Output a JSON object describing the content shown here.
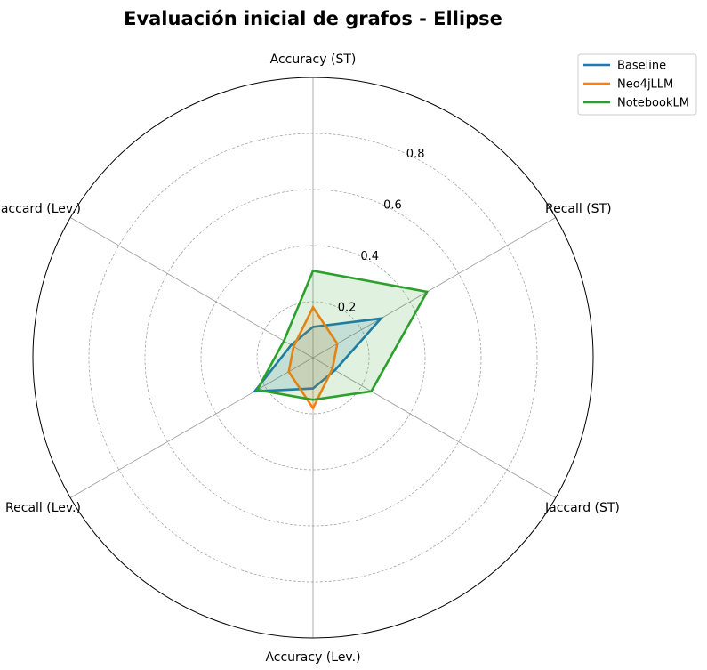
{
  "chart_data": {
    "type": "radar",
    "title": "Evaluación inicial de grafos - Ellipse",
    "axes": [
      "Accuracy (ST)",
      "Recall (ST)",
      "Jaccard (ST)",
      "Accuracy (Lev.)",
      "Recall (Lev.)",
      "Jaccard (Lev.)"
    ],
    "rlim": [
      0,
      1.0
    ],
    "rticks": [
      0.2,
      0.4,
      0.6,
      0.8
    ],
    "rtick_labels": [
      "0.2",
      "0.4",
      "0.6",
      "0.8"
    ],
    "grid": true,
    "legend_position": "top-right",
    "series": [
      {
        "name": "Baseline",
        "color": "#1f77b4",
        "values": [
          0.11,
          0.28,
          0.09,
          0.11,
          0.24,
          0.09
        ]
      },
      {
        "name": "Neo4jLLM",
        "color": "#ff7f0e",
        "values": [
          0.18,
          0.1,
          0.08,
          0.18,
          0.1,
          0.08
        ]
      },
      {
        "name": "NotebookLM",
        "color": "#2ca02c",
        "values": [
          0.31,
          0.47,
          0.24,
          0.15,
          0.23,
          0.12
        ]
      }
    ]
  }
}
